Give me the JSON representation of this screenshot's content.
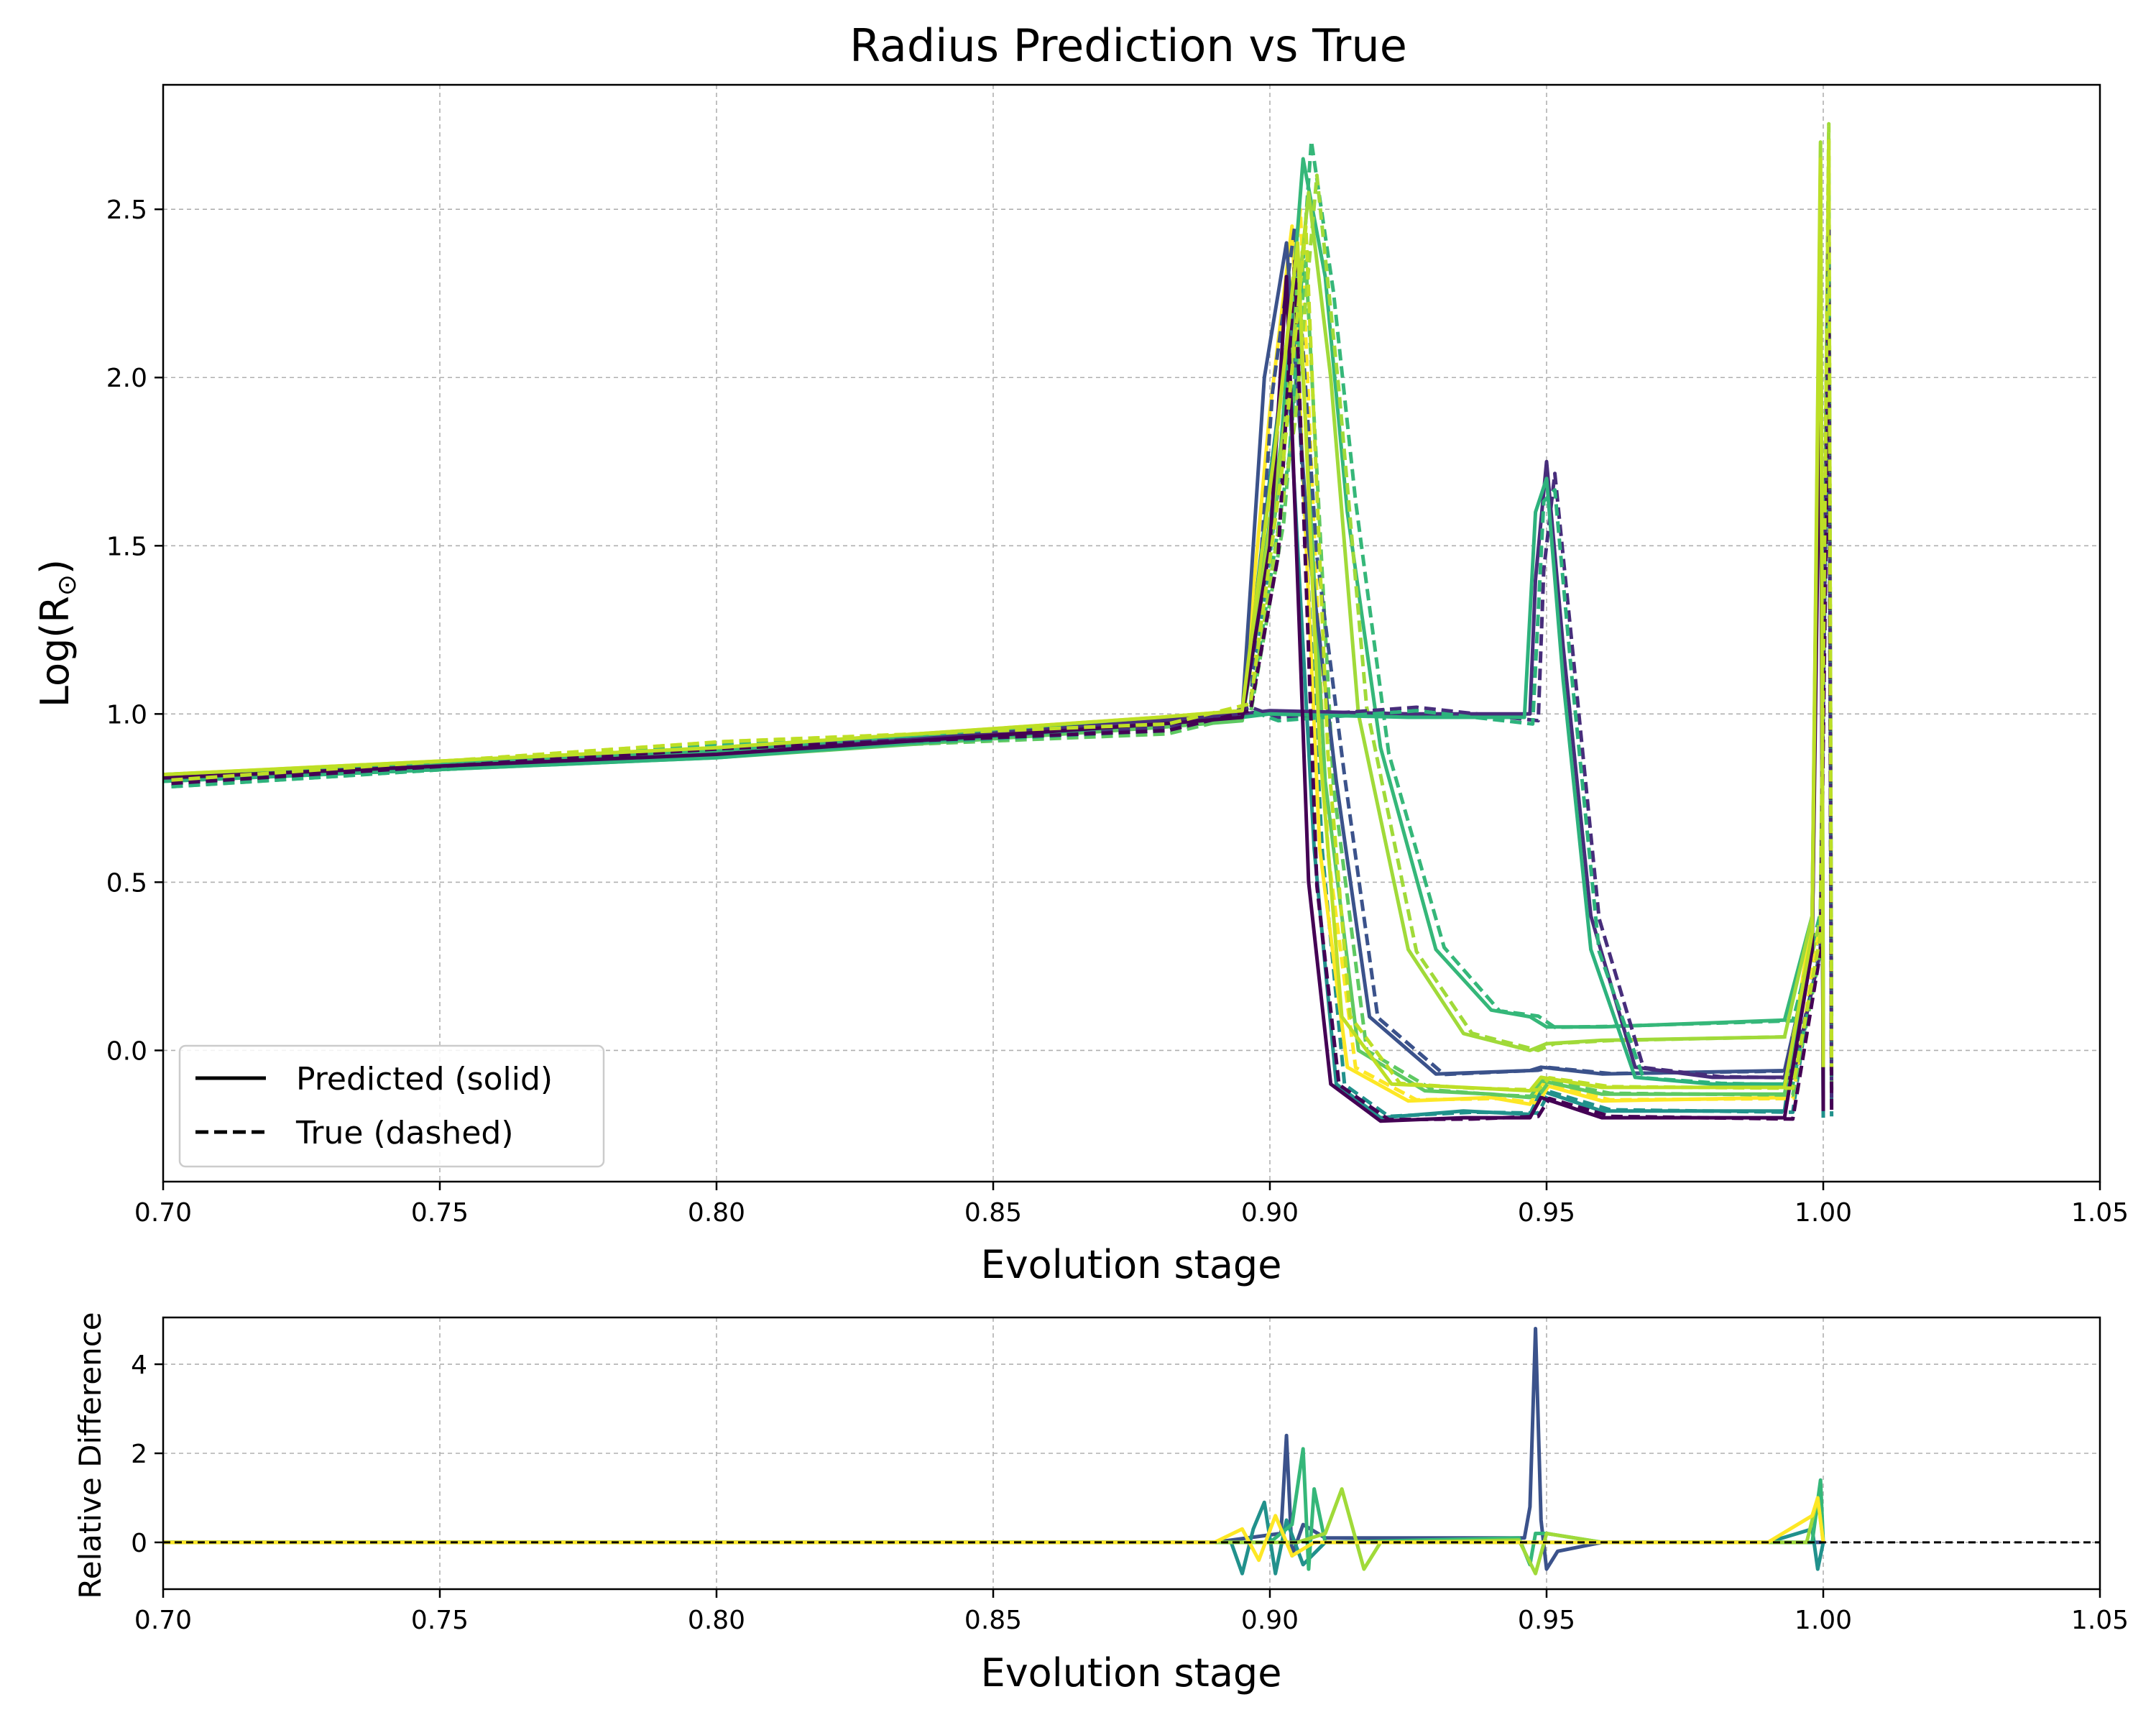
{
  "chart_data": [
    {
      "type": "line",
      "title": "Radius Prediction vs True",
      "xlabel": "Evolution stage",
      "ylabel": "Log(R",
      "ylabel_sub": "⊙",
      "ylabel_close": ")",
      "xlim": [
        0.7,
        1.05
      ],
      "ylim": [
        -0.39,
        2.87
      ],
      "xticks": [
        0.7,
        0.75,
        0.8,
        0.85,
        0.9,
        0.95,
        1.0,
        1.05
      ],
      "xtick_labels": [
        "0.70",
        "0.75",
        "0.80",
        "0.85",
        "0.90",
        "0.95",
        "1.00",
        "1.05"
      ],
      "yticks": [
        0.0,
        0.5,
        1.0,
        1.5,
        2.0,
        2.5
      ],
      "ytick_labels": [
        "0.0",
        "0.5",
        "1.0",
        "1.5",
        "2.0",
        "2.5"
      ],
      "grid": true,
      "legend": {
        "placement": "lower-left",
        "entries": [
          {
            "label": "Predicted (solid)",
            "style": "solid"
          },
          {
            "label": "True (dashed)",
            "style": "dashed"
          }
        ]
      },
      "colormap": [
        "#440154",
        "#3b528b",
        "#21918c",
        "#1f9e89",
        "#5ec962",
        "#35b779",
        "#a0da39",
        "#bddf26",
        "#fde725"
      ],
      "series": [
        {
          "color": "#21918c",
          "x": [
            0.7,
            0.8,
            0.88,
            0.895,
            0.9,
            0.903,
            0.908,
            0.912,
            0.92,
            0.935,
            0.947,
            0.949,
            0.96,
            0.993,
            0.998,
            0.9995,
            1.0
          ],
          "y": [
            0.81,
            0.88,
            0.97,
            1.0,
            1.7,
            2.1,
            0.6,
            -0.1,
            -0.2,
            -0.18,
            -0.19,
            -0.12,
            -0.18,
            -0.18,
            0.4,
            2.2,
            -0.2
          ]
        },
        {
          "color": "#fde725",
          "x": [
            0.7,
            0.8,
            0.88,
            0.895,
            0.9,
            0.904,
            0.909,
            0.914,
            0.925,
            0.94,
            0.947,
            0.949,
            0.96,
            0.993,
            0.998,
            0.9995,
            1.0
          ],
          "y": [
            0.82,
            0.9,
            0.99,
            1.01,
            1.9,
            2.45,
            0.6,
            -0.05,
            -0.15,
            -0.14,
            -0.16,
            -0.1,
            -0.15,
            -0.14,
            0.4,
            2.6,
            -0.1
          ]
        },
        {
          "color": "#5ec962",
          "x": [
            0.7,
            0.8,
            0.88,
            0.895,
            0.901,
            0.905,
            0.91,
            0.916,
            0.928,
            0.94,
            0.947,
            0.949,
            0.96,
            0.993,
            0.998,
            0.9995,
            1.0
          ],
          "y": [
            0.8,
            0.87,
            0.96,
            0.98,
            1.6,
            2.3,
            0.8,
            0.0,
            -0.12,
            -0.13,
            -0.14,
            -0.09,
            -0.13,
            -0.13,
            0.3,
            2.5,
            -0.12
          ]
        },
        {
          "color": "#3b528b",
          "x": [
            0.7,
            0.8,
            0.88,
            0.895,
            0.899,
            0.903,
            0.907,
            0.912,
            0.918,
            0.93,
            0.947,
            0.949,
            0.96,
            0.993,
            0.998,
            0.9995,
            1.0
          ],
          "y": [
            0.81,
            0.88,
            0.98,
            1.0,
            2.0,
            2.4,
            1.5,
            0.8,
            0.1,
            -0.07,
            -0.06,
            -0.05,
            -0.07,
            -0.06,
            0.3,
            2.4,
            -0.08
          ]
        },
        {
          "color": "#35b779",
          "x": [
            0.7,
            0.8,
            0.88,
            0.895,
            0.902,
            0.906,
            0.91,
            0.914,
            0.92,
            0.93,
            0.94,
            0.947,
            0.95,
            0.96,
            0.993,
            0.998,
            0.9995,
            1.0
          ],
          "y": [
            0.82,
            0.89,
            0.98,
            1.0,
            1.8,
            2.65,
            2.3,
            1.6,
            0.9,
            0.3,
            0.12,
            0.1,
            0.07,
            0.07,
            0.09,
            0.4,
            2.55,
            0.1
          ]
        },
        {
          "color": "#a0da39",
          "x": [
            0.7,
            0.8,
            0.88,
            0.895,
            0.903,
            0.907,
            0.911,
            0.916,
            0.925,
            0.935,
            0.947,
            0.95,
            0.96,
            0.993,
            0.998,
            0.9995,
            1.0
          ],
          "y": [
            0.81,
            0.88,
            0.97,
            0.99,
            1.9,
            2.55,
            2.0,
            1.0,
            0.3,
            0.05,
            0.0,
            0.02,
            0.03,
            0.04,
            0.4,
            2.7,
            0.0
          ]
        },
        {
          "color": "#472d7b",
          "x": [
            0.7,
            0.8,
            0.88,
            0.895,
            0.9,
            0.925,
            0.947,
            0.948,
            0.95,
            0.953,
            0.958,
            0.966,
            0.98,
            0.993,
            0.998,
            0.9995,
            1.0
          ],
          "y": [
            0.81,
            0.88,
            0.98,
            1.0,
            1.01,
            1.0,
            1.0,
            1.4,
            1.75,
            1.2,
            0.4,
            -0.05,
            -0.08,
            -0.08,
            0.3,
            2.4,
            -0.15
          ]
        },
        {
          "color": "#2db27d",
          "x": [
            0.7,
            0.8,
            0.88,
            0.895,
            0.9,
            0.925,
            0.946,
            0.948,
            0.95,
            0.953,
            0.958,
            0.966,
            0.98,
            0.993,
            0.998,
            0.9995,
            1.0
          ],
          "y": [
            0.8,
            0.87,
            0.97,
            0.99,
            1.0,
            0.99,
            0.99,
            1.6,
            1.7,
            1.1,
            0.3,
            -0.08,
            -0.1,
            -0.1,
            0.3,
            2.3,
            -0.12
          ]
        },
        {
          "color": "#440154",
          "x": [
            0.7,
            0.8,
            0.88,
            0.895,
            0.9,
            0.903,
            0.907,
            0.911,
            0.92,
            0.935,
            0.947,
            0.949,
            0.96,
            0.993,
            0.998,
            0.9995,
            1.0
          ],
          "y": [
            0.81,
            0.88,
            0.97,
            0.99,
            1.5,
            2.3,
            0.5,
            -0.1,
            -0.21,
            -0.2,
            -0.2,
            -0.14,
            -0.2,
            -0.2,
            0.3,
            2.1,
            -0.18
          ]
        },
        {
          "color": "#bddf26",
          "x": [
            0.7,
            0.8,
            0.88,
            0.895,
            0.901,
            0.905,
            0.909,
            0.913,
            0.922,
            0.935,
            0.947,
            0.949,
            0.96,
            0.993,
            0.998,
            0.9995,
            1.0
          ],
          "y": [
            0.82,
            0.9,
            0.99,
            1.01,
            1.8,
            2.4,
            0.9,
            0.1,
            -0.1,
            -0.11,
            -0.12,
            -0.08,
            -0.11,
            -0.11,
            0.35,
            2.65,
            -0.05
          ]
        }
      ]
    },
    {
      "type": "line",
      "xlabel": "Evolution stage",
      "ylabel": "Relative Difference",
      "xlim": [
        0.7,
        1.05
      ],
      "ylim": [
        -1.05,
        5.05
      ],
      "xticks": [
        0.7,
        0.75,
        0.8,
        0.85,
        0.9,
        0.95,
        1.0,
        1.05
      ],
      "xtick_labels": [
        "0.70",
        "0.75",
        "0.80",
        "0.85",
        "0.90",
        "0.95",
        "1.00",
        "1.05"
      ],
      "yticks": [
        0,
        2,
        4
      ],
      "ytick_labels": [
        "0",
        "2",
        "4"
      ],
      "grid": true,
      "reference_line": {
        "y": 0,
        "style": "dashed",
        "color": "#000000"
      },
      "series": [
        {
          "color": "#3b528b",
          "x": [
            0.7,
            0.89,
            0.902,
            0.903,
            0.904,
            0.906,
            0.91,
            0.946,
            0.947,
            0.948,
            0.949,
            0.95,
            0.952,
            0.96,
            1.0
          ],
          "y": [
            0,
            0,
            0.2,
            2.4,
            -0.3,
            0.4,
            0.1,
            0.1,
            0.8,
            4.8,
            0.5,
            -0.6,
            -0.2,
            0,
            0
          ]
        },
        {
          "color": "#21918c",
          "x": [
            0.7,
            0.893,
            0.895,
            0.897,
            0.899,
            0.901,
            0.903,
            0.906,
            0.91,
            0.99,
            0.998,
            0.999,
            1.0
          ],
          "y": [
            0,
            0,
            -0.7,
            0.3,
            0.9,
            -0.7,
            0.5,
            -0.5,
            0,
            0,
            0.3,
            -0.6,
            0
          ]
        },
        {
          "color": "#35b779",
          "x": [
            0.7,
            0.9,
            0.904,
            0.906,
            0.907,
            0.908,
            0.91,
            0.945,
            0.947,
            0.948,
            0.95,
            0.96,
            0.998,
            0.9995,
            1.0
          ],
          "y": [
            0,
            0,
            0.4,
            2.1,
            -0.6,
            1.2,
            0,
            0.1,
            -0.5,
            0.2,
            0.2,
            0,
            0,
            1.4,
            0
          ]
        },
        {
          "color": "#a0da39",
          "x": [
            0.7,
            0.905,
            0.91,
            0.913,
            0.915,
            0.917,
            0.92,
            0.945,
            0.948,
            0.95,
            0.96,
            0.997,
            0.999,
            1.0
          ],
          "y": [
            0,
            0,
            0.2,
            1.2,
            0.3,
            -0.6,
            0,
            0.05,
            -0.7,
            0.2,
            0,
            0,
            1.0,
            0
          ]
        },
        {
          "color": "#fde725",
          "x": [
            0.7,
            0.89,
            0.895,
            0.898,
            0.901,
            0.904,
            0.908,
            0.99,
            0.998,
            0.999,
            1.0
          ],
          "y": [
            0,
            0,
            0.3,
            -0.4,
            0.6,
            -0.3,
            0,
            0,
            0.6,
            1.0,
            0
          ]
        }
      ]
    }
  ]
}
